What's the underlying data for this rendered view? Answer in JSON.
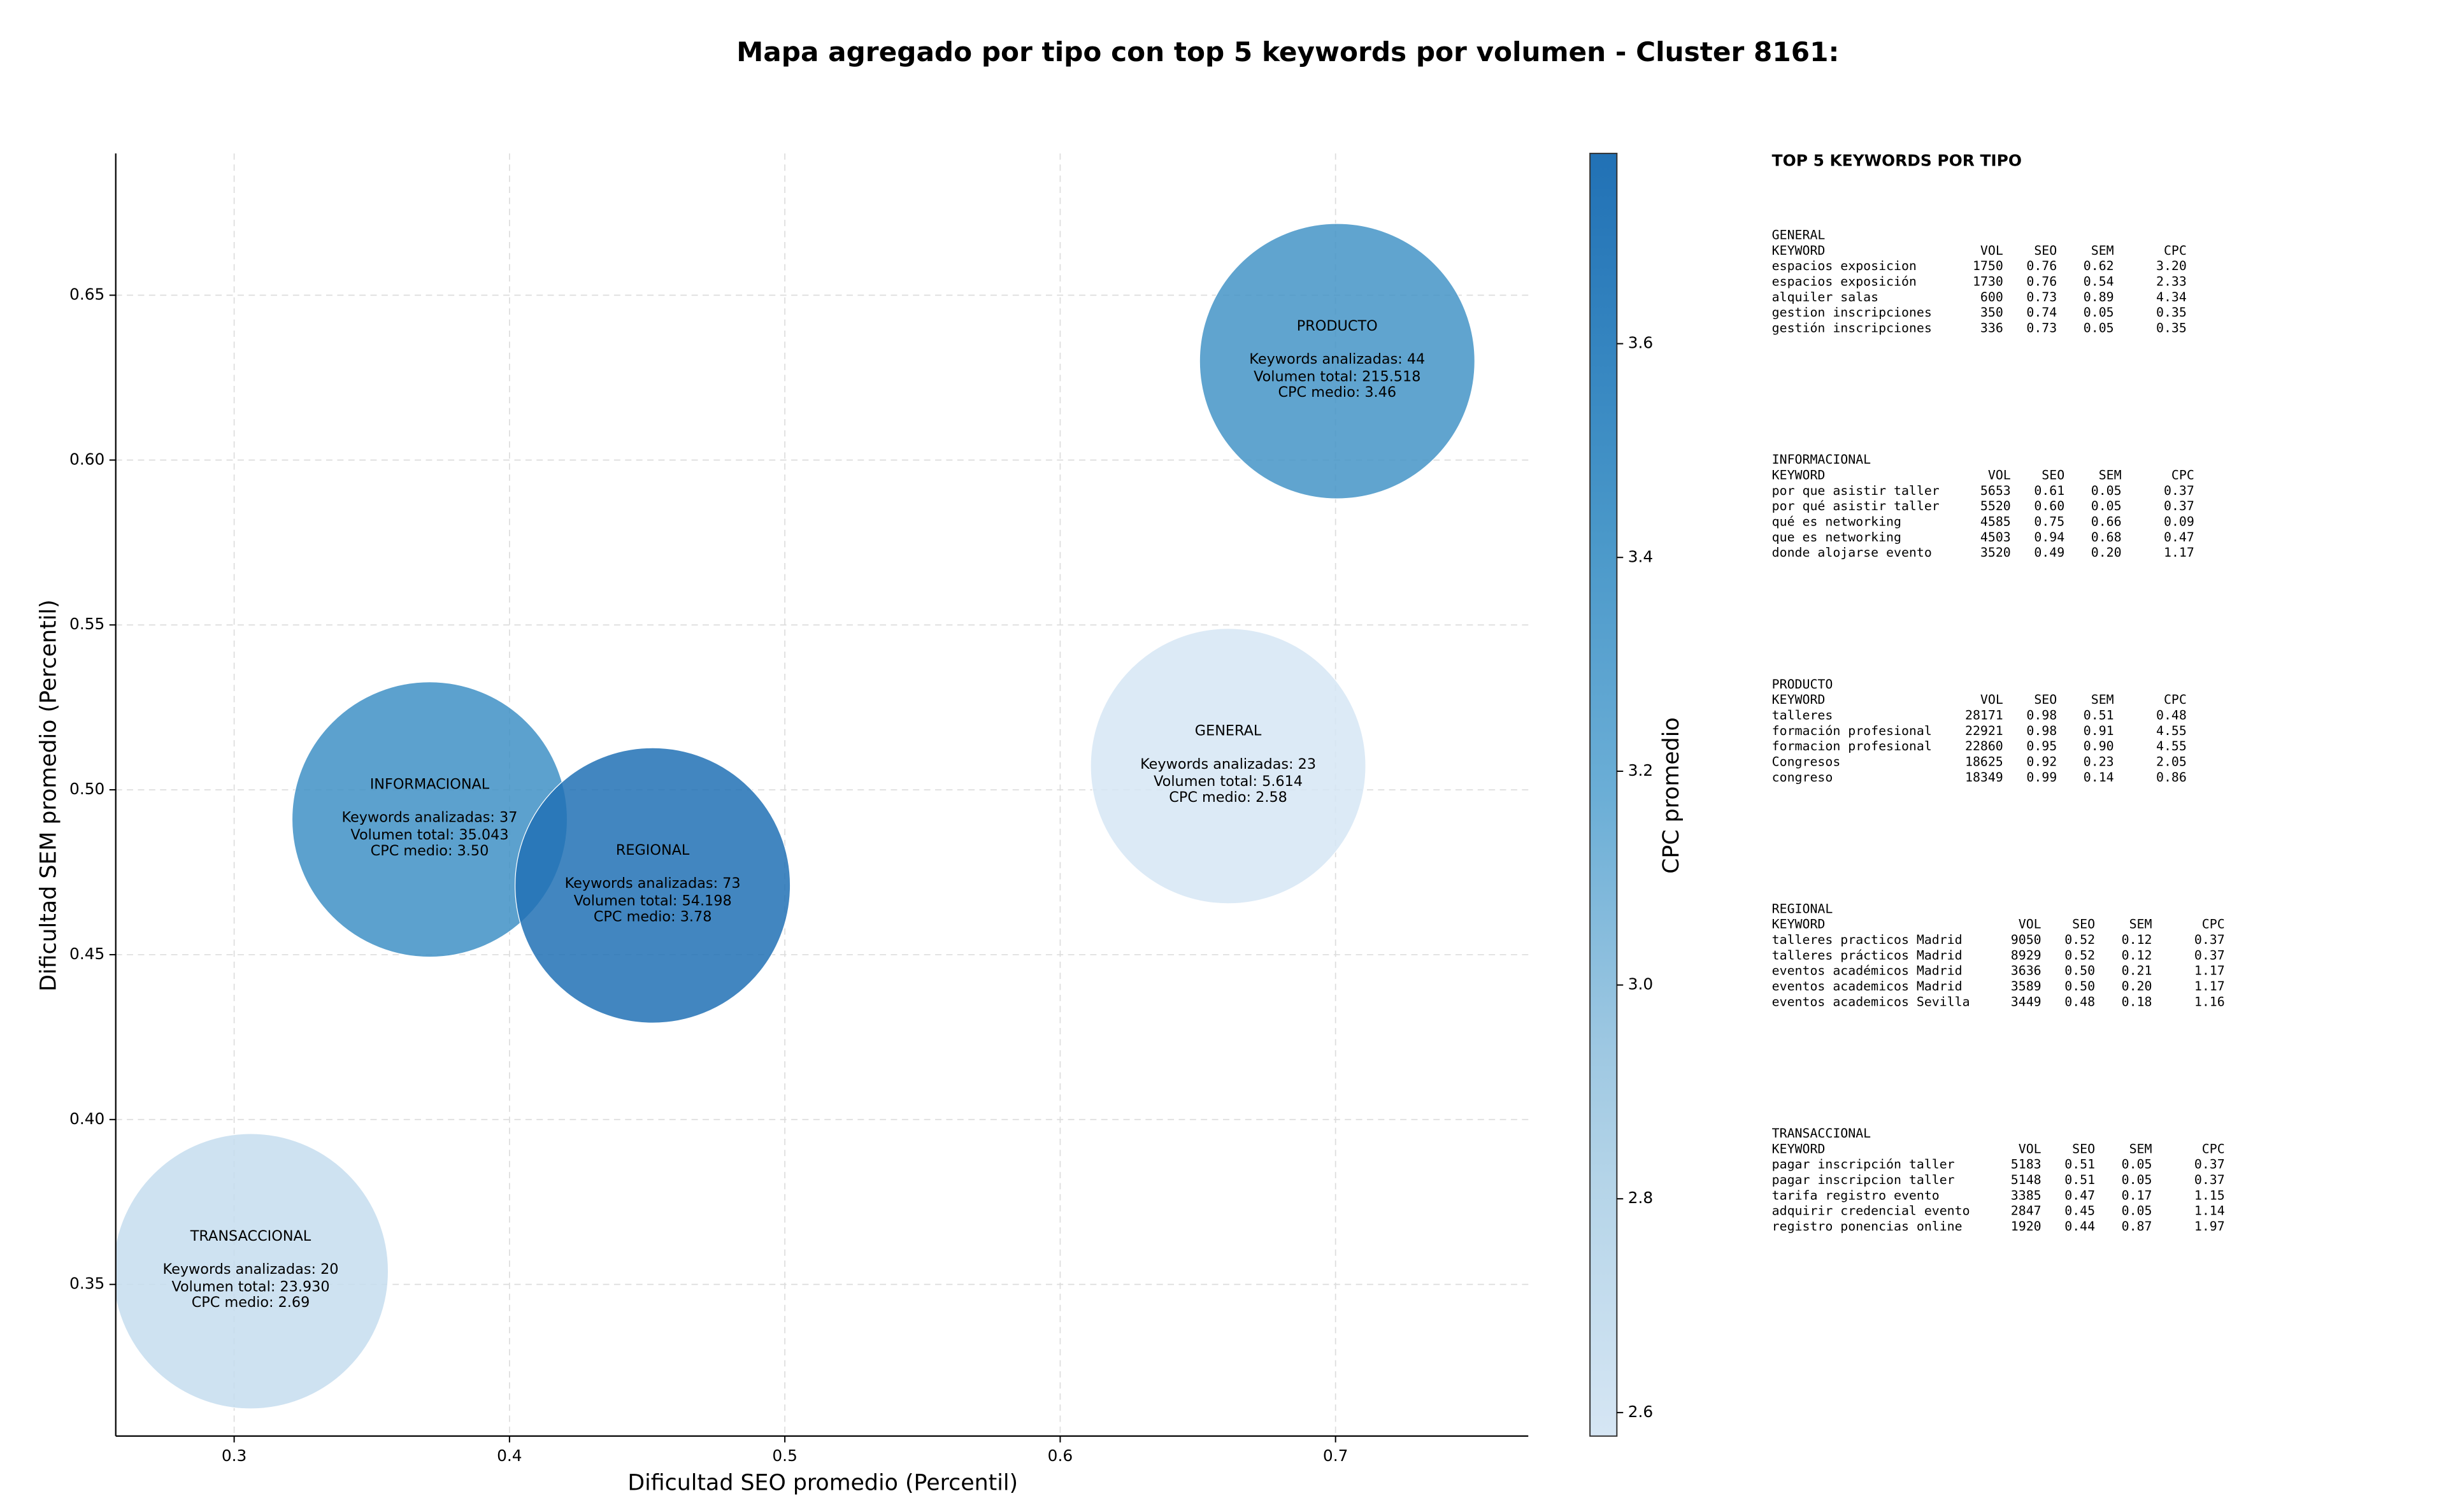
{
  "chart_data": {
    "type": "bubble",
    "title": "Mapa agregado por tipo con top 5 keywords por volumen - Cluster 8161:",
    "xlabel": "Dificultad SEO promedio (Percentil)",
    "ylabel": "Dificultad SEM promedio (Percentil)",
    "x": [
      0.306,
      0.371,
      0.452,
      0.661,
      0.7006
    ],
    "y": [
      0.354,
      0.491,
      0.471,
      0.5072,
      0.63
    ],
    "cpc": [
      2.69,
      3.5,
      3.78,
      2.58,
      3.46
    ],
    "annotations": [
      [
        "TRANSACCIONAL",
        "Keywords analizadas: 20",
        "Volumen total: 23.930",
        "CPC medio: 2.69"
      ],
      [
        "INFORMACIONAL",
        "Keywords analizadas: 37",
        "Volumen total: 35.043",
        "CPC medio: 3.50"
      ],
      [
        "REGIONAL",
        "Keywords analizadas: 73",
        "Volumen total: 54.198",
        "CPC medio: 3.78"
      ],
      [
        "GENERAL",
        "Keywords analizadas: 23",
        "Volumen total: 5.614",
        "CPC medio: 2.58"
      ],
      [
        "PRODUCTO",
        "Keywords analizadas: 44",
        "Volumen total: 215.518",
        "CPC medio: 3.46"
      ]
    ],
    "xlim": [
      0.257,
      0.77
    ],
    "ylim": [
      0.304,
      0.693
    ],
    "xticks": [
      0.3,
      0.4,
      0.5,
      0.6,
      0.7
    ],
    "yticks": [
      0.35,
      {
        "value": 0.4,
        "label": "0.40"
      },
      0.45,
      {
        "value": 0.5,
        "label": "0.50"
      },
      0.55,
      {
        "value": 0.6,
        "label": "0.60"
      },
      0.65
    ],
    "grid": true,
    "colorbar": {
      "label": "CPC promedio",
      "colormap": "Blues",
      "clim": [
        2.578,
        3.778
      ],
      "ticks": [
        2.6,
        2.8,
        {
          "value": 3,
          "label": "3.0"
        },
        3.2,
        3.4,
        3.6
      ]
    }
  },
  "keyword_panel": {
    "title": "TOP 5 KEYWORDS POR TIPO",
    "columns": [
      "KEYWORD",
      "VOL",
      "SEO",
      "SEM",
      "CPC"
    ],
    "groups": [
      {
        "name": "GENERAL",
        "rows": [
          [
            "espacios exposicion",
            "1750",
            "0.76",
            "0.62",
            "3.20"
          ],
          [
            "espacios exposición",
            "1730",
            "0.76",
            "0.54",
            "2.33"
          ],
          [
            "alquiler salas",
            "600",
            "0.73",
            "0.89",
            "4.34"
          ],
          [
            "gestion inscripciones",
            "350",
            "0.74",
            "0.05",
            "0.35"
          ],
          [
            "gestión inscripciones",
            "336",
            "0.73",
            "0.05",
            "0.35"
          ]
        ]
      },
      {
        "name": "INFORMACIONAL",
        "rows": [
          [
            "por que asistir taller",
            "5653",
            "0.61",
            "0.05",
            "0.37"
          ],
          [
            "por qué asistir taller",
            "5520",
            "0.60",
            "0.05",
            "0.37"
          ],
          [
            "qué es networking",
            "4585",
            "0.75",
            "0.66",
            "0.09"
          ],
          [
            "que es networking",
            "4503",
            "0.94",
            "0.68",
            "0.47"
          ],
          [
            "donde alojarse evento",
            "3520",
            "0.49",
            "0.20",
            "1.17"
          ]
        ]
      },
      {
        "name": "PRODUCTO",
        "rows": [
          [
            "talleres",
            "28171",
            "0.98",
            "0.51",
            "0.48"
          ],
          [
            "formación profesional",
            "22921",
            "0.98",
            "0.91",
            "4.55"
          ],
          [
            "formacion profesional",
            "22860",
            "0.95",
            "0.90",
            "4.55"
          ],
          [
            "Congresos",
            "18625",
            "0.92",
            "0.23",
            "2.05"
          ],
          [
            "congreso",
            "18349",
            "0.99",
            "0.14",
            "0.86"
          ]
        ]
      },
      {
        "name": "REGIONAL",
        "rows": [
          [
            "talleres practicos Madrid",
            "9050",
            "0.52",
            "0.12",
            "0.37"
          ],
          [
            "talleres prácticos Madrid",
            "8929",
            "0.52",
            "0.12",
            "0.37"
          ],
          [
            "eventos académicos Madrid",
            "3636",
            "0.50",
            "0.21",
            "1.17"
          ],
          [
            "eventos academicos Madrid",
            "3589",
            "0.50",
            "0.20",
            "1.17"
          ],
          [
            "eventos academicos Sevilla",
            "3449",
            "0.48",
            "0.18",
            "1.16"
          ]
        ]
      },
      {
        "name": "TRANSACCIONAL",
        "rows": [
          [
            "pagar inscripción taller",
            "5183",
            "0.51",
            "0.05",
            "0.37"
          ],
          [
            "pagar inscripcion taller",
            "5148",
            "0.51",
            "0.05",
            "0.37"
          ],
          [
            "tarifa registro evento",
            "3385",
            "0.47",
            "0.17",
            "1.15"
          ],
          [
            "adquirir credencial evento",
            "2847",
            "0.45",
            "0.05",
            "1.14"
          ],
          [
            "registro ponencias online",
            "1920",
            "0.44",
            "0.87",
            "1.97"
          ]
        ]
      }
    ]
  }
}
